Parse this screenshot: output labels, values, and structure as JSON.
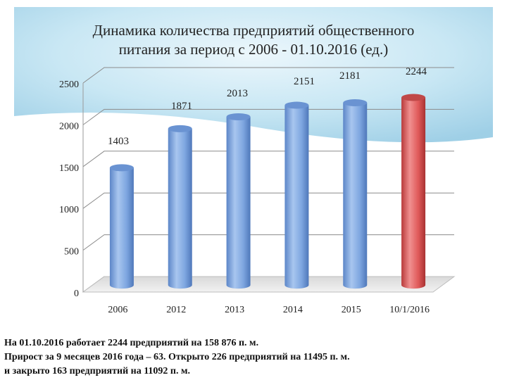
{
  "slide": {
    "title_lines": [
      "Динамика количества предприятий общественного",
      "питания  за период с  2006 - 01.10.2016 (ед.)"
    ],
    "caption_lines": [
      "На 01.10.2016 работает 2244 предприятий на 158 876 п. м.",
      "Прирост за 9 месяцев 2016 года – 63. Открыто 226 предприятий на 11495 п. м.",
      "и закрыто 163 предприятий на 11092  п. м."
    ]
  },
  "chart_data": {
    "type": "bar",
    "title": "",
    "xlabel": "",
    "ylabel": "",
    "categories": [
      "2006",
      "2012",
      "2013",
      "2014",
      "2015",
      "10/1/2016"
    ],
    "values": [
      1403,
      1871,
      2013,
      2151,
      2181,
      2244
    ],
    "ylim": [
      0,
      2500
    ],
    "yticks": [
      0,
      500,
      1000,
      1500,
      2000,
      2500
    ],
    "grid": true,
    "legend": "none",
    "colors": {
      "bar": "#7ea6e0",
      "bar_highlight": "#e05a5a",
      "background_panel": "#9fd0e8"
    },
    "highlight_index": 5
  }
}
